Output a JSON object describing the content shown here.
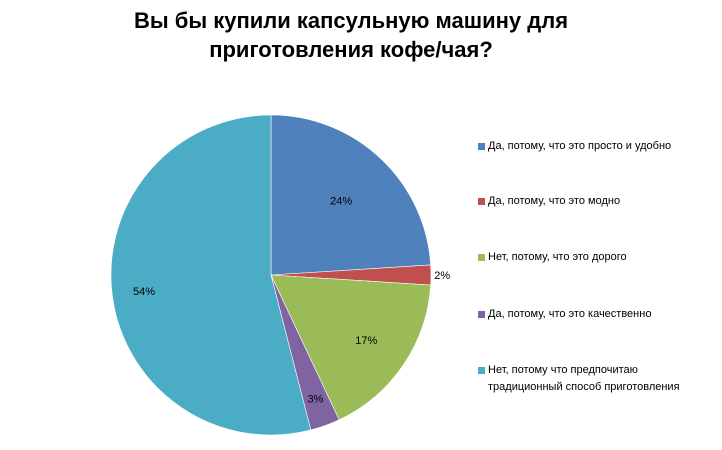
{
  "chart_data": {
    "type": "pie",
    "title": [
      "Вы бы купили капсульную машину для",
      "приготовления кофе/чая?"
    ],
    "categories": [
      "Да, потому, что это просто и удобно",
      "Да, потому, что это модно",
      "Нет, потому, что это дорого",
      "Да, потому, что это качественно",
      "Нет, потому что предпочитаю традиционный способ приготовления"
    ],
    "values": [
      24,
      2,
      17,
      3,
      54
    ],
    "data_labels": [
      "24%",
      "2%",
      "17%",
      "3%",
      "54%"
    ],
    "colors": [
      "#4F81BD",
      "#C0504D",
      "#9BBB59",
      "#8064A2",
      "#4BACC6"
    ],
    "legend_position": "right"
  }
}
